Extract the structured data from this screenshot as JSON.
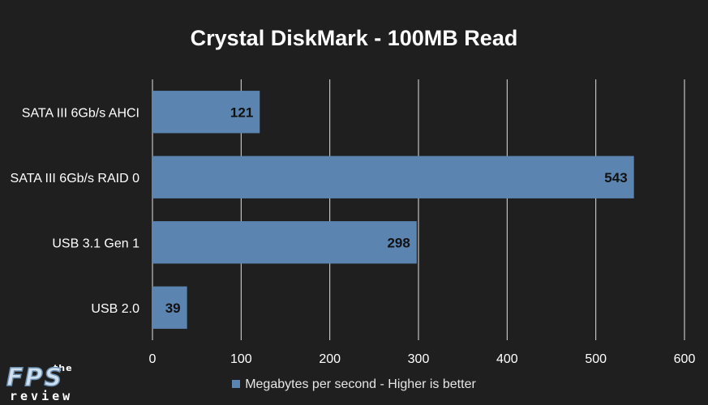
{
  "chart_data": {
    "type": "bar",
    "orientation": "horizontal",
    "title": "Crystal DiskMark - 100MB Read",
    "categories": [
      "SATA III 6Gb/s AHCI",
      "SATA III 6Gb/s RAID 0",
      "USB 3.1 Gen 1",
      "USB 2.0"
    ],
    "series": [
      {
        "name": "Megabytes per second - Higher is better",
        "values": [
          121,
          543,
          298,
          39
        ],
        "color": "#5b84b1"
      }
    ],
    "xlim": [
      0,
      600
    ],
    "xticks": [
      0,
      100,
      200,
      300,
      400,
      500,
      600
    ],
    "grid": true,
    "legend_position": "bottom",
    "data_labels": true
  },
  "theme": {
    "background": "#1f1f1f",
    "bar_color": "#5b84b1",
    "grid_color": "#e0e0e0",
    "text_color": "#ffffff",
    "data_label_color": "#111111"
  },
  "logo": {
    "top_text": "the",
    "main_text": "FPS",
    "bottom_text": "review"
  }
}
